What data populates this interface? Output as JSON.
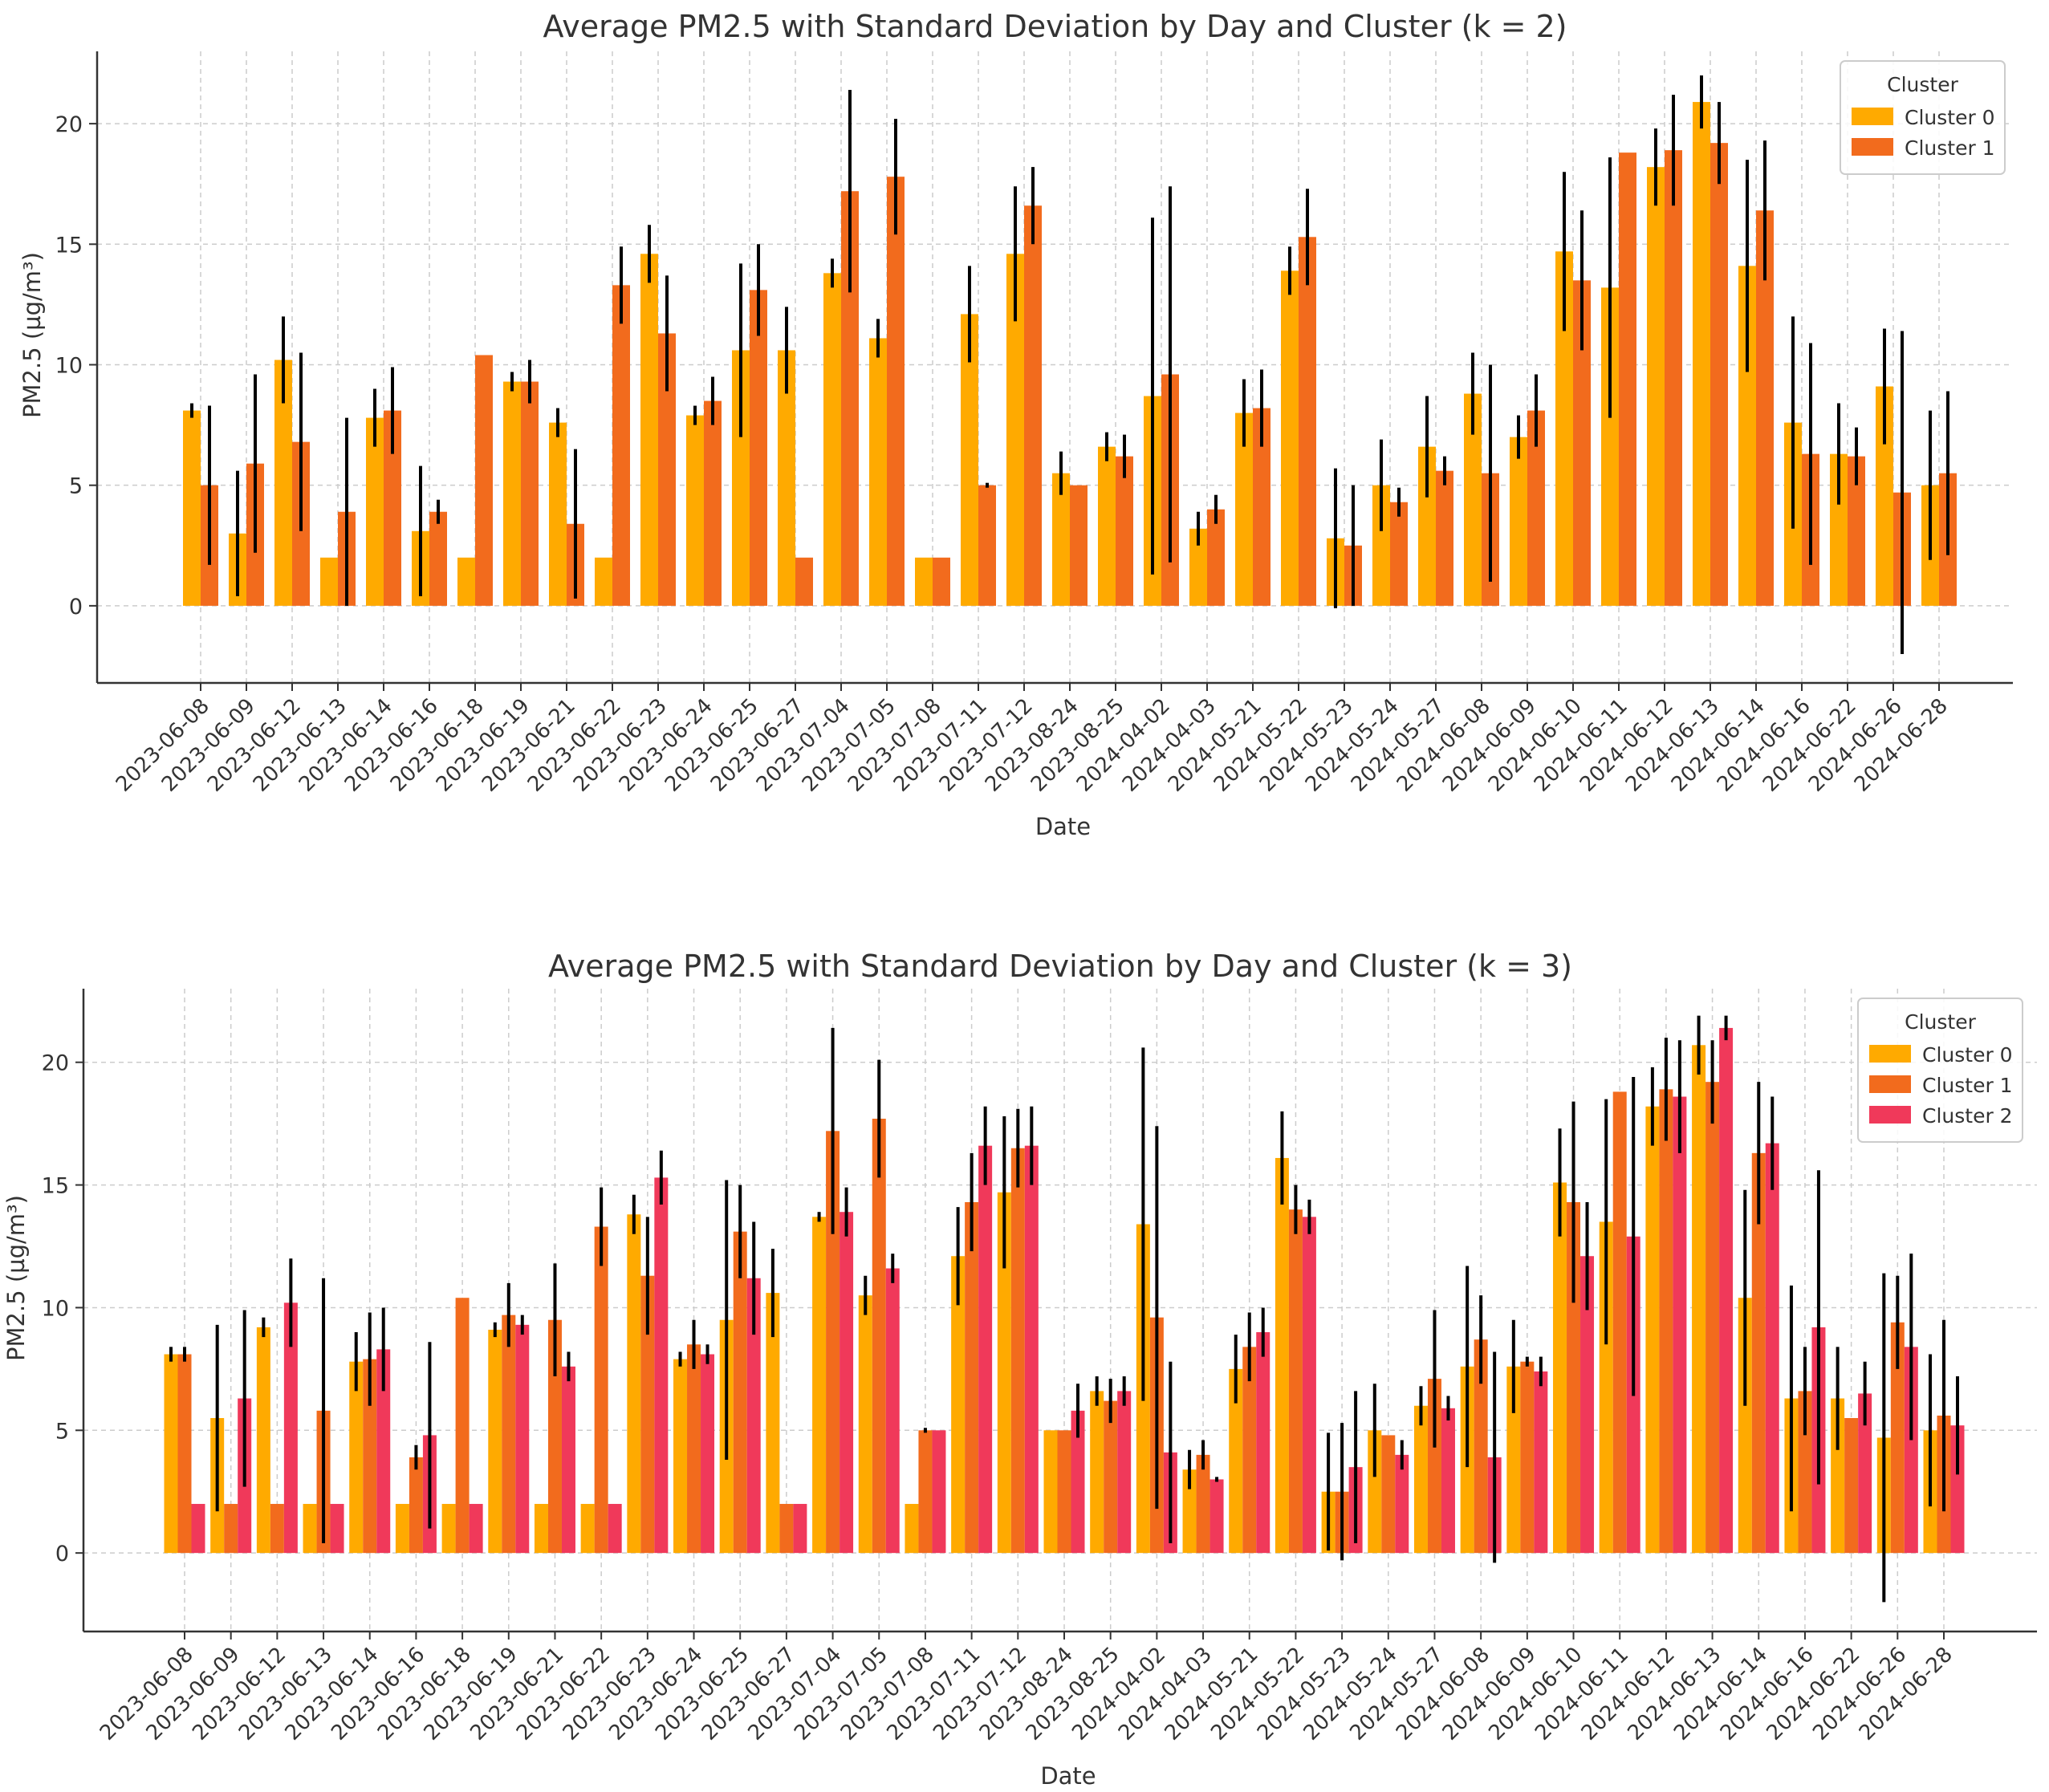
{
  "chart_data": [
    {
      "type": "bar",
      "title": "Average PM2.5 with Standard Deviation by Day and Cluster (k = 2)",
      "xlabel": "Date",
      "ylabel": "PM2.5 (µg/m³)",
      "ylim": [
        -3.2,
        23
      ],
      "yticks": [
        0,
        5,
        10,
        15,
        20
      ],
      "grid": true,
      "legend_title": "Cluster",
      "legend_position": "top-right",
      "categories": [
        "2023-06-08",
        "2023-06-09",
        "2023-06-12",
        "2023-06-13",
        "2023-06-14",
        "2023-06-16",
        "2023-06-18",
        "2023-06-19",
        "2023-06-21",
        "2023-06-22",
        "2023-06-23",
        "2023-06-24",
        "2023-06-25",
        "2023-06-27",
        "2023-07-04",
        "2023-07-05",
        "2023-07-08",
        "2023-07-11",
        "2023-07-12",
        "2023-08-24",
        "2023-08-25",
        "2024-04-02",
        "2024-04-03",
        "2024-05-21",
        "2024-05-22",
        "2024-05-23",
        "2024-05-24",
        "2024-05-27",
        "2024-06-08",
        "2024-06-09",
        "2024-06-10",
        "2024-06-11",
        "2024-06-12",
        "2024-06-13",
        "2024-06-14",
        "2024-06-16",
        "2024-06-22",
        "2024-06-26",
        "2024-06-28"
      ],
      "series": [
        {
          "name": "Cluster 0",
          "color": "#FFAA00",
          "values": [
            8.1,
            3.0,
            10.2,
            2.0,
            7.8,
            3.1,
            2.0,
            9.3,
            7.6,
            2.0,
            14.6,
            7.9,
            10.6,
            10.6,
            13.8,
            11.1,
            2.0,
            12.1,
            14.6,
            5.5,
            6.6,
            8.7,
            3.2,
            8.0,
            13.9,
            2.8,
            5.0,
            6.6,
            8.8,
            7.0,
            14.7,
            13.2,
            18.2,
            20.9,
            14.1,
            7.6,
            6.3,
            9.1,
            5.0
          ],
          "std": [
            0.3,
            2.6,
            1.8,
            0,
            1.2,
            2.7,
            0,
            0.4,
            0.6,
            0,
            1.2,
            0.4,
            3.6,
            1.8,
            0.6,
            0.8,
            0,
            2.0,
            2.8,
            0.9,
            0.6,
            7.4,
            0.7,
            1.4,
            1.0,
            2.9,
            1.9,
            2.1,
            1.7,
            0.9,
            3.3,
            5.4,
            1.6,
            1.1,
            4.4,
            4.4,
            2.1,
            2.4,
            3.1
          ]
        },
        {
          "name": "Cluster 1",
          "color": "#F26B1D",
          "values": [
            5.0,
            5.9,
            6.8,
            3.9,
            8.1,
            3.9,
            10.4,
            9.3,
            3.4,
            13.3,
            11.3,
            8.5,
            13.1,
            2.0,
            17.2,
            17.8,
            2.0,
            5.0,
            16.6,
            5.0,
            6.2,
            9.6,
            4.0,
            8.2,
            15.3,
            2.5,
            4.3,
            5.6,
            5.5,
            8.1,
            13.5,
            18.8,
            18.9,
            19.2,
            16.4,
            6.3,
            6.2,
            4.7,
            5.5
          ],
          "std": [
            3.3,
            3.7,
            3.7,
            3.9,
            1.8,
            0.5,
            0,
            0.9,
            3.1,
            1.6,
            2.4,
            1.0,
            1.9,
            0,
            4.2,
            2.4,
            0,
            0.1,
            1.6,
            0,
            0.9,
            7.8,
            0.6,
            1.6,
            2.0,
            2.5,
            0.6,
            0.6,
            4.5,
            1.5,
            2.9,
            0,
            2.3,
            1.7,
            2.9,
            4.6,
            1.2,
            6.7,
            3.4
          ]
        }
      ]
    },
    {
      "type": "bar",
      "title": "Average PM2.5 with Standard Deviation by Day and Cluster (k = 3)",
      "xlabel": "Date",
      "ylabel": "PM2.5 (µg/m³)",
      "ylim": [
        -3.2,
        23
      ],
      "yticks": [
        0,
        5,
        10,
        15,
        20
      ],
      "grid": true,
      "legend_title": "Cluster",
      "legend_position": "top-right",
      "categories": [
        "2023-06-08",
        "2023-06-09",
        "2023-06-12",
        "2023-06-13",
        "2023-06-14",
        "2023-06-16",
        "2023-06-18",
        "2023-06-19",
        "2023-06-21",
        "2023-06-22",
        "2023-06-23",
        "2023-06-24",
        "2023-06-25",
        "2023-06-27",
        "2023-07-04",
        "2023-07-05",
        "2023-07-08",
        "2023-07-11",
        "2023-07-12",
        "2023-08-24",
        "2023-08-25",
        "2024-04-02",
        "2024-04-03",
        "2024-05-21",
        "2024-05-22",
        "2024-05-23",
        "2024-05-24",
        "2024-05-27",
        "2024-06-08",
        "2024-06-09",
        "2024-06-10",
        "2024-06-11",
        "2024-06-12",
        "2024-06-13",
        "2024-06-14",
        "2024-06-16",
        "2024-06-22",
        "2024-06-26",
        "2024-06-28"
      ],
      "series": [
        {
          "name": "Cluster 0",
          "color": "#FFAA00",
          "values": [
            8.1,
            5.5,
            9.2,
            2.0,
            7.8,
            2.0,
            2.0,
            9.1,
            2.0,
            2.0,
            13.8,
            7.9,
            9.5,
            10.6,
            13.7,
            10.5,
            2.0,
            12.1,
            14.7,
            5.0,
            6.6,
            13.4,
            3.4,
            7.5,
            16.1,
            2.5,
            5.0,
            6.0,
            7.6,
            7.6,
            15.1,
            13.5,
            18.2,
            20.7,
            10.4,
            6.3,
            6.3,
            4.7,
            5.0
          ],
          "std": [
            0.3,
            3.8,
            0.4,
            0,
            1.2,
            0,
            0,
            0.3,
            0,
            0,
            0.8,
            0.3,
            5.7,
            1.8,
            0.2,
            0.8,
            0,
            2.0,
            3.1,
            0,
            0.6,
            7.2,
            0.8,
            1.4,
            1.9,
            2.4,
            1.9,
            0.8,
            4.1,
            1.9,
            2.2,
            5.0,
            1.6,
            1.2,
            4.4,
            4.6,
            2.1,
            6.7,
            3.1
          ]
        },
        {
          "name": "Cluster 1",
          "color": "#F26B1D",
          "values": [
            8.1,
            2.0,
            2.0,
            5.8,
            7.9,
            3.9,
            10.4,
            9.7,
            9.5,
            13.3,
            11.3,
            8.5,
            13.1,
            2.0,
            17.2,
            17.7,
            5.0,
            14.3,
            16.5,
            5.0,
            6.2,
            9.6,
            4.0,
            8.4,
            14.0,
            2.5,
            4.8,
            7.1,
            8.7,
            7.8,
            14.3,
            18.8,
            18.9,
            19.2,
            16.3,
            6.6,
            5.5,
            9.4,
            5.6
          ],
          "std": [
            0.3,
            0,
            0,
            5.4,
            1.9,
            0.5,
            0,
            1.3,
            2.3,
            1.6,
            2.4,
            1.0,
            1.9,
            0,
            4.2,
            2.4,
            0.1,
            2.0,
            1.6,
            0,
            0.9,
            7.8,
            0.6,
            1.4,
            1.0,
            2.8,
            0,
            2.8,
            1.8,
            0.2,
            4.1,
            0,
            2.1,
            1.7,
            2.9,
            1.8,
            0,
            1.9,
            3.9
          ]
        },
        {
          "name": "Cluster 2",
          "color": "#F0395A",
          "values": [
            2.0,
            6.3,
            10.2,
            2.0,
            8.3,
            4.8,
            2.0,
            9.3,
            7.6,
            2.0,
            15.3,
            8.1,
            11.2,
            2.0,
            13.9,
            11.6,
            5.0,
            16.6,
            16.6,
            5.8,
            6.6,
            4.1,
            3.0,
            9.0,
            13.7,
            3.5,
            4.0,
            5.9,
            3.9,
            7.4,
            12.1,
            12.9,
            18.6,
            21.4,
            16.7,
            9.2,
            6.5,
            8.4,
            5.2
          ],
          "std": [
            0,
            3.6,
            1.8,
            0,
            1.7,
            3.8,
            0,
            0.4,
            0.6,
            0,
            1.1,
            0.4,
            2.3,
            0,
            1.0,
            0.6,
            0,
            1.6,
            1.6,
            1.1,
            0.6,
            3.7,
            0.1,
            1.0,
            0.7,
            3.1,
            0.6,
            0.5,
            4.3,
            0.6,
            2.2,
            6.5,
            2.3,
            0.5,
            1.9,
            6.4,
            1.3,
            3.8,
            2.0
          ]
        }
      ]
    }
  ]
}
